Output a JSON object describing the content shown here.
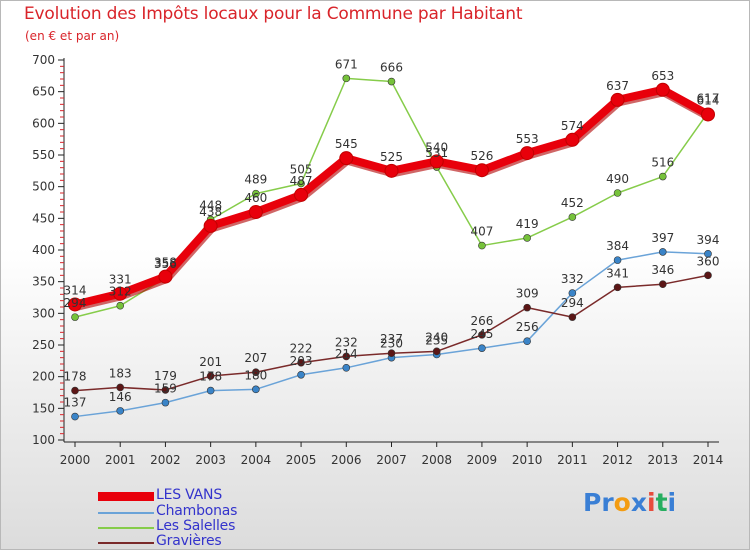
{
  "header": {
    "title": "Evolution des Impôts locaux pour la Commune par Habitant",
    "subtitle": "(en € et par an)"
  },
  "chart_data": {
    "type": "line",
    "title": "Evolution des Impôts locaux pour la Commune par Habitant",
    "subtitle": "(en € et par an)",
    "xlabel": "",
    "ylabel": "",
    "x": [
      "2000",
      "2001",
      "2002",
      "2003",
      "2004",
      "2005",
      "2006",
      "2007",
      "2008",
      "2009",
      "2010",
      "2011",
      "2012",
      "2013",
      "2014"
    ],
    "ylim": [
      100,
      700
    ],
    "yticks": [
      "100",
      "150",
      "200",
      "250",
      "300",
      "350",
      "400",
      "450",
      "500",
      "550",
      "600",
      "650",
      "700"
    ],
    "series": [
      {
        "name": "LES VANS",
        "color": "#e8000b",
        "point_color": "#e8000b",
        "values": [
          314,
          331,
          358,
          438,
          460,
          487,
          545,
          525,
          540,
          526,
          553,
          574,
          637,
          653,
          614
        ],
        "labels": [
          "314",
          "331",
          "358",
          "438",
          "460",
          "487",
          "545",
          "525",
          "540",
          "526",
          "553",
          "574",
          "637",
          "653",
          "614"
        ]
      },
      {
        "name": "Chambonas",
        "color": "#6aa3d8",
        "point_color": "#3a84c8",
        "values": [
          137,
          146,
          159,
          178,
          180,
          203,
          214,
          230,
          235,
          245,
          256,
          332,
          384,
          397,
          394
        ],
        "labels": [
          "137",
          "146",
          "159",
          "178",
          "180",
          "203",
          "214",
          "230",
          "235",
          "245",
          "256",
          "332",
          "384",
          "397",
          "394"
        ]
      },
      {
        "name": "Les Salelles",
        "color": "#86cc4a",
        "point_color": "#76c23a",
        "values": [
          294,
          312,
          356,
          448,
          489,
          505,
          671,
          666,
          531,
          407,
          419,
          452,
          490,
          516,
          617
        ],
        "labels": [
          "294",
          "312",
          "356",
          "448",
          "489",
          "505",
          "671",
          "666",
          "531",
          "407",
          "419",
          "452",
          "490",
          "516",
          "617"
        ]
      },
      {
        "name": "Gravières",
        "color": "#7a2a2a",
        "point_color": "#5c1616",
        "values": [
          178,
          183,
          179,
          201,
          207,
          222,
          232,
          237,
          240,
          266,
          309,
          294,
          341,
          346,
          360
        ],
        "labels": [
          "178",
          "183",
          "179",
          "201",
          "207",
          "222",
          "232",
          "237",
          "240",
          "266",
          "309",
          "294",
          "341",
          "346",
          "360"
        ]
      }
    ],
    "legend_position": "bottom-left",
    "grid": false
  },
  "legend": {
    "items": [
      {
        "label": "LES VANS",
        "color": "#e8000b"
      },
      {
        "label": "Chambonas",
        "color": "#6aa3d8"
      },
      {
        "label": "Les Salelles",
        "color": "#86cc4a"
      },
      {
        "label": "Gravières",
        "color": "#7a2a2a"
      }
    ],
    "text_color": "#3333cc"
  },
  "logo": {
    "letters": [
      "P",
      "r",
      "o",
      "x",
      "i",
      "t",
      "i"
    ],
    "colors": [
      "#3a7fd5",
      "#3a7fd5",
      "#f39c12",
      "#3a7fd5",
      "#e74c3c",
      "#27ae60",
      "#3a7fd5"
    ]
  }
}
